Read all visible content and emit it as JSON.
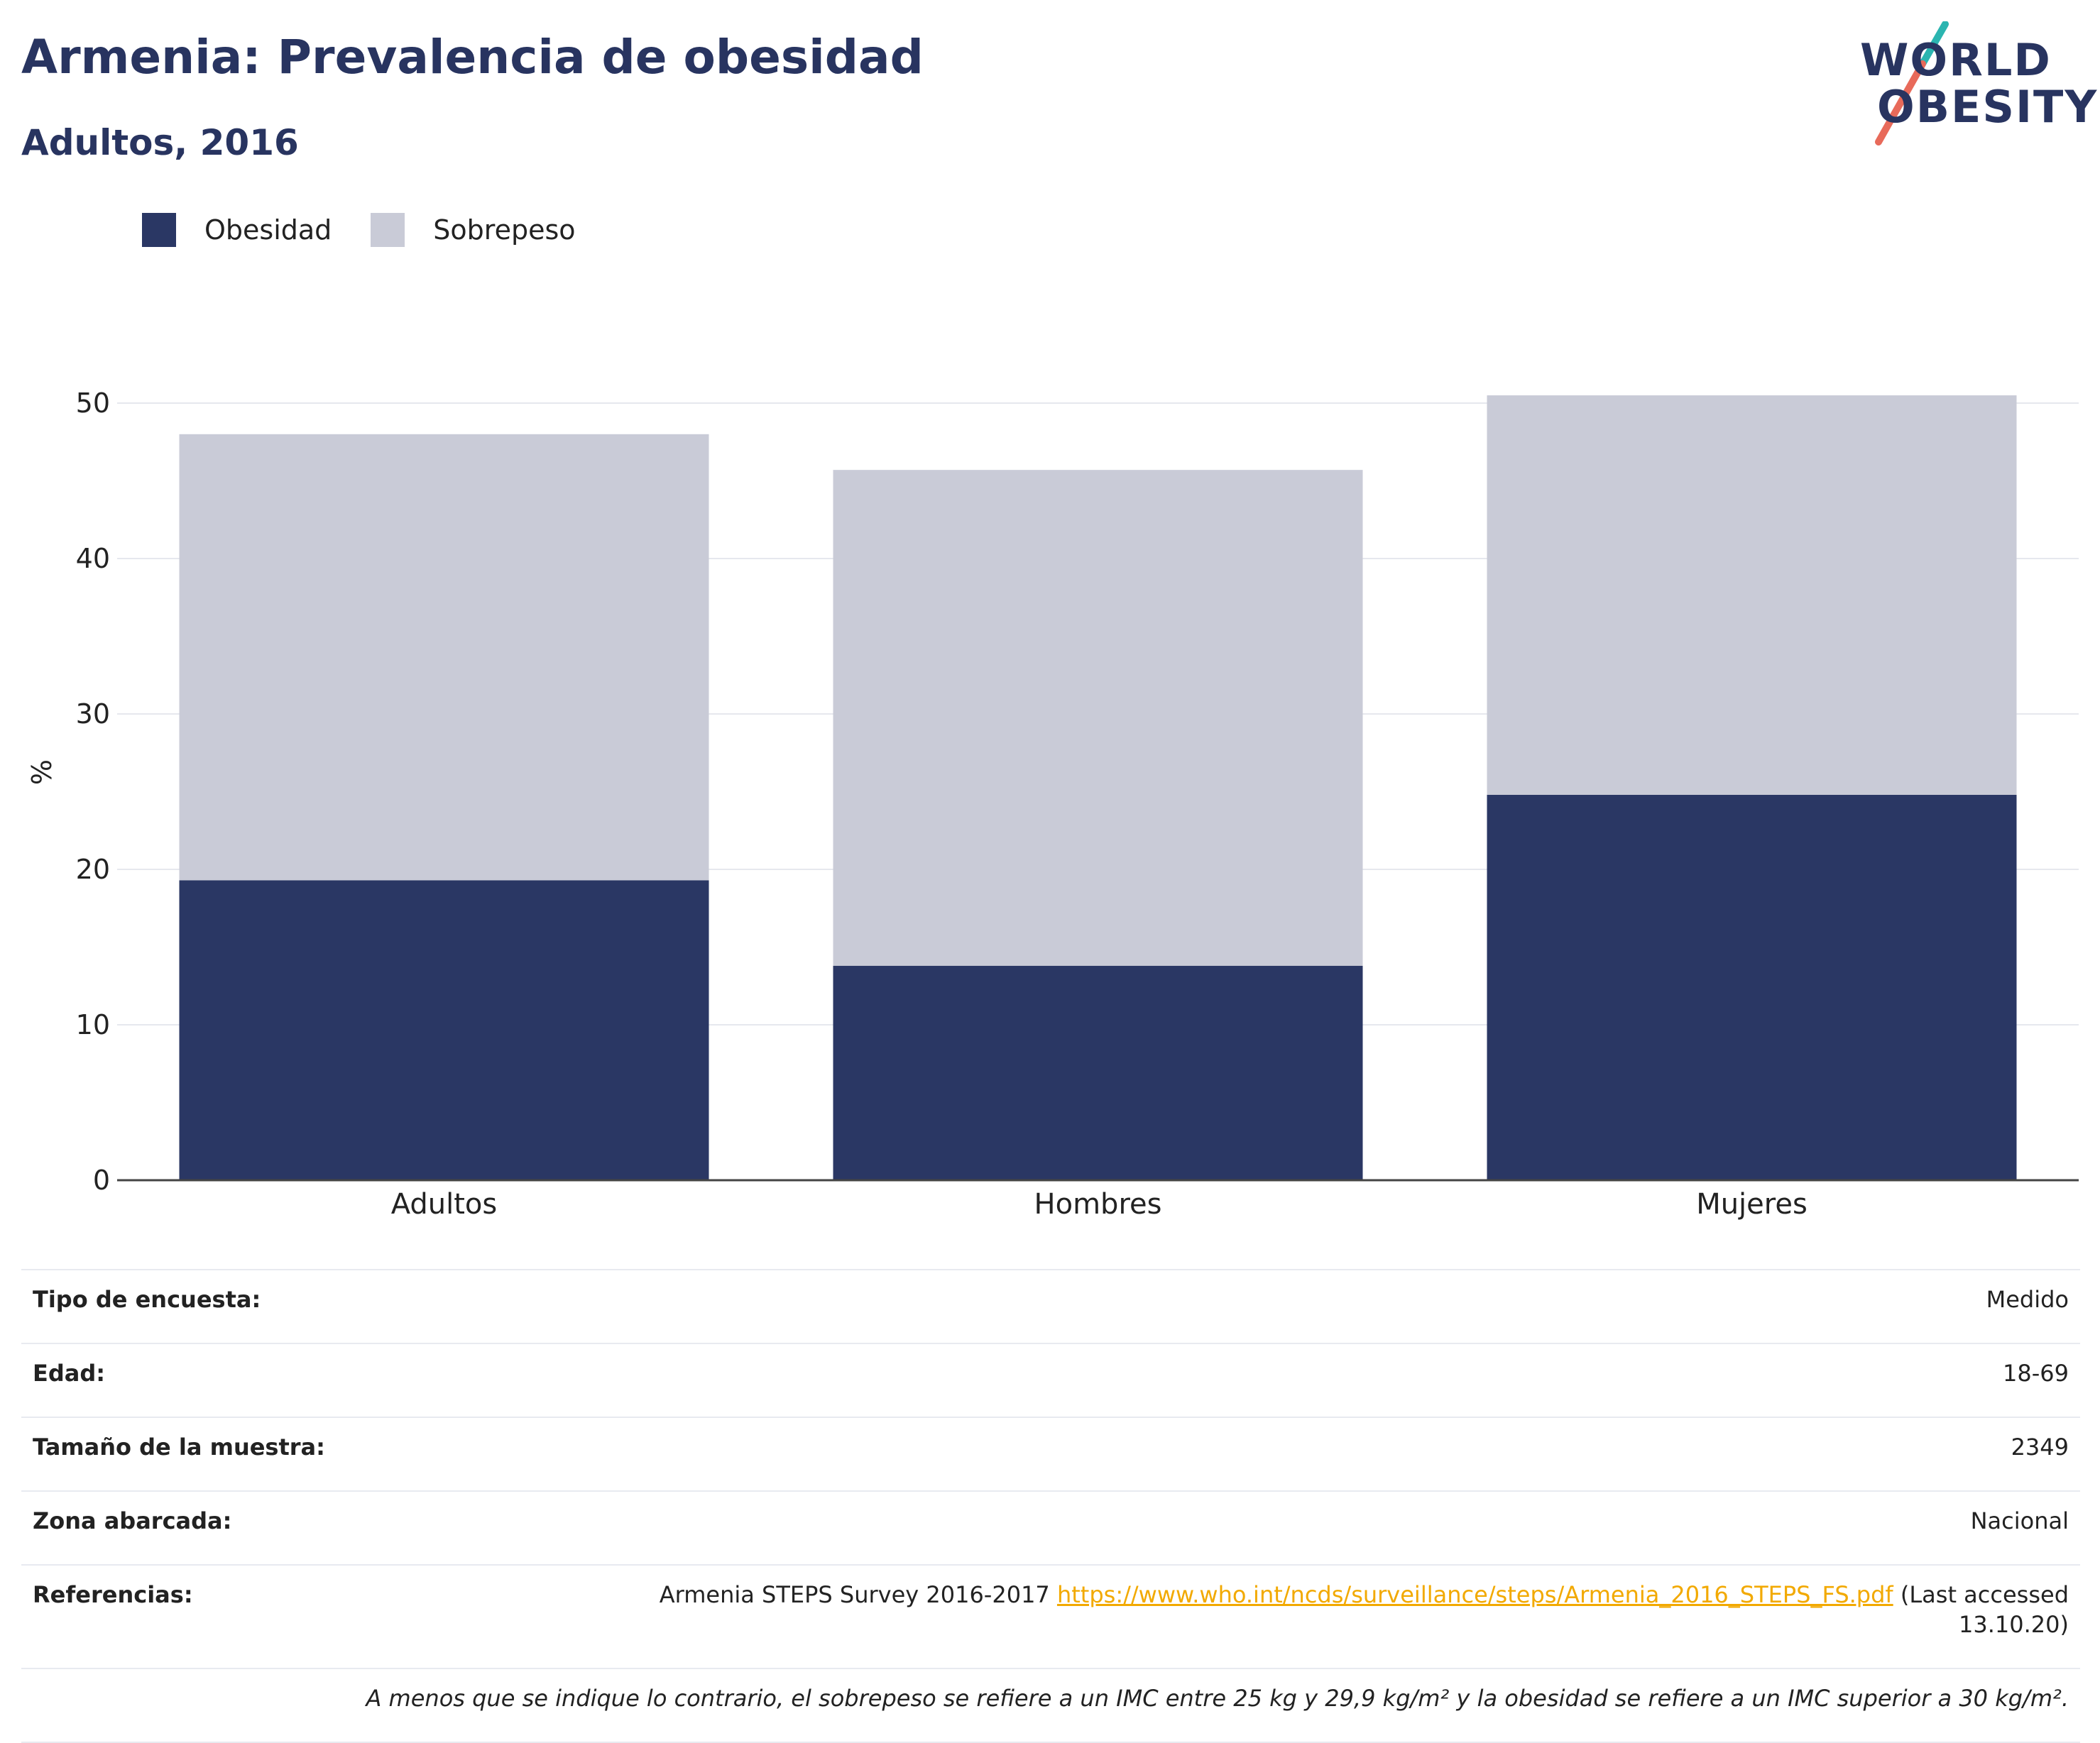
{
  "title": "Armenia: Prevalencia de obesidad",
  "subtitle": "Adultos, 2016",
  "logo": {
    "line1": "WORLD",
    "line2": "OBESITY",
    "accent_teal": "#2bb5b0",
    "accent_coral": "#e86a5a"
  },
  "legend": [
    {
      "label": "Obesidad",
      "color": "#2a3764"
    },
    {
      "label": "Sobrepeso",
      "color": "#c9cbd7"
    }
  ],
  "chart_data": {
    "type": "bar",
    "stacked": true,
    "categories": [
      "Adultos",
      "Hombres",
      "Mujeres"
    ],
    "series": [
      {
        "name": "Obesidad",
        "values": [
          19.3,
          13.8,
          24.8
        ],
        "color": "#2a3764"
      },
      {
        "name": "Sobrepeso",
        "values": [
          28.7,
          31.9,
          25.7
        ],
        "color": "#c9cbd7"
      }
    ],
    "ylabel": "%",
    "xlabel": "",
    "ylim": [
      0,
      52
    ],
    "yticks": [
      0,
      10,
      20,
      30,
      40,
      50
    ],
    "grid": true,
    "legend_position": "top-left"
  },
  "info": {
    "survey_type": {
      "label": "Tipo de encuesta:",
      "value": "Medido"
    },
    "age": {
      "label": "Edad:",
      "value": "18-69"
    },
    "sample_size": {
      "label": "Tamaño de la muestra:",
      "value": "2349"
    },
    "area": {
      "label": "Zona abarcada:",
      "value": "Nacional"
    },
    "references": {
      "label": "Referencias:",
      "text": "Armenia STEPS Survey 2016-2017",
      "link": "https://www.who.int/ncds/surveillance/steps/Armenia_2016_STEPS_FS.pdf",
      "suffix_line1": "(Last accessed",
      "suffix_line2": "13.10.20)"
    },
    "note": "A menos que se indique lo contrario, el sobrepeso se refiere a un IMC entre 25 kg y 29,9 kg/m² y la obesidad se refiere a un IMC superior a 30 kg/m²."
  }
}
